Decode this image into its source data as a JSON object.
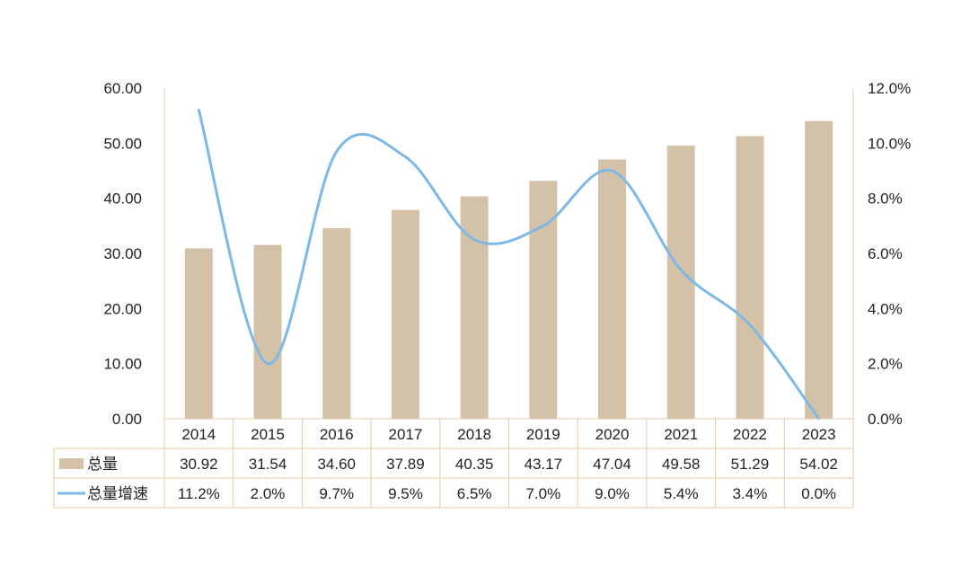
{
  "chart_data": {
    "type": "bar",
    "categories": [
      "2014",
      "2015",
      "2016",
      "2017",
      "2018",
      "2019",
      "2020",
      "2021",
      "2022",
      "2023"
    ],
    "series": [
      {
        "name": "总量",
        "type": "bar",
        "axis": "left",
        "color": "#d4c2a8",
        "values": [
          30.92,
          31.54,
          34.6,
          37.89,
          40.35,
          43.17,
          47.04,
          49.58,
          51.29,
          54.02
        ],
        "labels": [
          "30.92",
          "31.54",
          "34.60",
          "37.89",
          "40.35",
          "43.17",
          "47.04",
          "49.58",
          "51.29",
          "54.02"
        ]
      },
      {
        "name": "总量增速",
        "type": "line",
        "smooth": true,
        "axis": "right",
        "color": "#7eb8e6",
        "values": [
          11.2,
          2.0,
          9.7,
          9.5,
          6.5,
          7.0,
          9.0,
          5.4,
          3.4,
          0.0
        ],
        "labels": [
          "11.2%",
          "2.0%",
          "9.7%",
          "9.5%",
          "6.5%",
          "7.0%",
          "9.0%",
          "5.4%",
          "3.4%",
          "0.0%"
        ]
      }
    ],
    "y_left": {
      "ylim": [
        0,
        60
      ],
      "ticks": [
        "0.00",
        "10.00",
        "20.00",
        "30.00",
        "40.00",
        "50.00",
        "60.00"
      ]
    },
    "y_right": {
      "ylim": [
        0,
        12
      ],
      "ticks": [
        "0.0%",
        "2.0%",
        "4.0%",
        "6.0%",
        "8.0%",
        "10.0%",
        "12.0%"
      ]
    },
    "data_table": true,
    "grid": false,
    "border_color": "#e8c9a8"
  }
}
